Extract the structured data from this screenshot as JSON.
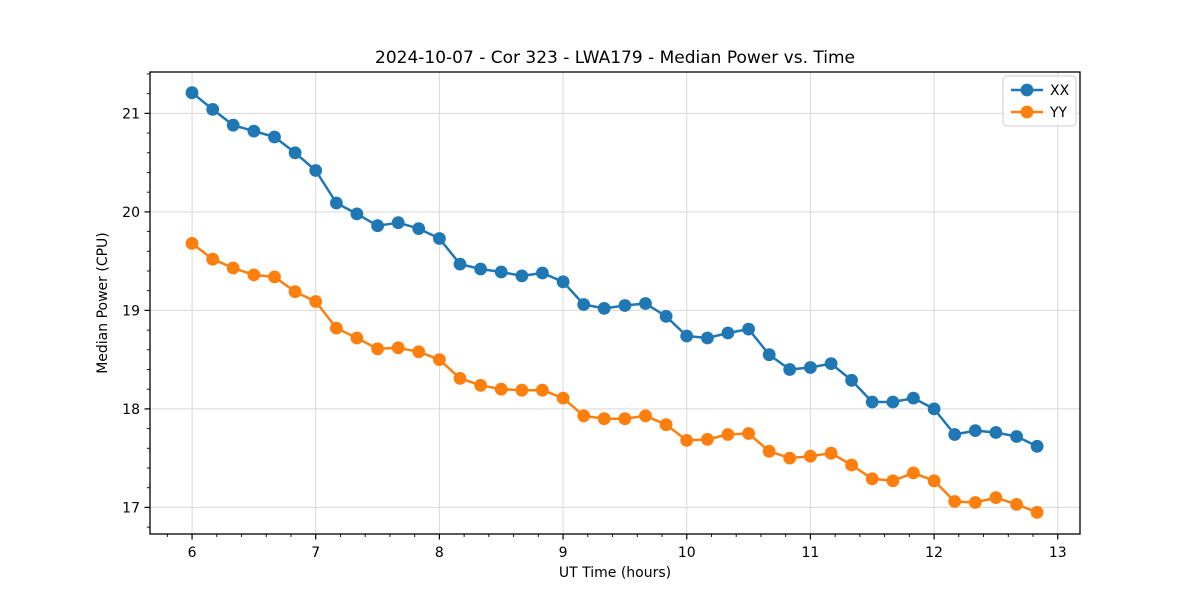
{
  "chart_data": {
    "type": "line",
    "title": "2024-10-07 - Cor 323 - LWA179 - Median Power vs. Time",
    "xlabel": "UT Time (hours)",
    "ylabel": "Median Power (CPU)",
    "xlim": [
      5.66,
      13.18
    ],
    "ylim": [
      16.73,
      21.42
    ],
    "xticks": [
      6,
      7,
      8,
      9,
      10,
      11,
      12,
      13
    ],
    "xticklabels": [
      "6",
      "7",
      "8",
      "9",
      "10",
      "11",
      "12",
      "13"
    ],
    "yticks": [
      17,
      18,
      19,
      20,
      21
    ],
    "yticklabels": [
      "17",
      "18",
      "19",
      "20",
      "21"
    ],
    "minor_tick_step": 0.2,
    "grid": "major-only",
    "grid_color": "#d9d9d9",
    "spine_color": "#000000",
    "legend_position": "upper-right",
    "marker": "circle",
    "x": [
      6.0,
      6.167,
      6.333,
      6.5,
      6.667,
      6.833,
      7.0,
      7.167,
      7.333,
      7.5,
      7.667,
      7.833,
      8.0,
      8.167,
      8.333,
      8.5,
      8.667,
      8.833,
      9.0,
      9.167,
      9.333,
      9.5,
      9.667,
      9.833,
      10.0,
      10.167,
      10.333,
      10.5,
      10.667,
      10.833,
      11.0,
      11.167,
      11.333,
      11.5,
      11.667,
      11.833,
      12.0,
      12.167,
      12.333,
      12.5,
      12.667,
      12.833
    ],
    "series": [
      {
        "name": "XX",
        "color": "#1f77b4",
        "values": [
          21.21,
          21.04,
          20.88,
          20.82,
          20.76,
          20.6,
          20.42,
          20.09,
          19.98,
          19.86,
          19.89,
          19.83,
          19.73,
          19.47,
          19.42,
          19.39,
          19.35,
          19.38,
          19.29,
          19.06,
          19.02,
          19.05,
          19.07,
          18.94,
          18.74,
          18.72,
          18.77,
          18.81,
          18.55,
          18.4,
          18.42,
          18.46,
          18.29,
          18.07,
          18.07,
          18.11,
          18.0,
          17.74,
          17.78,
          17.76,
          17.72,
          17.62
        ]
      },
      {
        "name": "YY",
        "color": "#ff7f0e",
        "values": [
          19.68,
          19.52,
          19.43,
          19.36,
          19.34,
          19.19,
          19.09,
          18.82,
          18.72,
          18.61,
          18.62,
          18.58,
          18.5,
          18.31,
          18.24,
          18.2,
          18.19,
          18.19,
          18.11,
          17.93,
          17.9,
          17.9,
          17.93,
          17.84,
          17.68,
          17.69,
          17.74,
          17.75,
          17.57,
          17.5,
          17.52,
          17.55,
          17.43,
          17.29,
          17.27,
          17.35,
          17.27,
          17.06,
          17.05,
          17.1,
          17.03,
          16.95
        ]
      }
    ]
  },
  "legend": {
    "items": [
      {
        "label": "XX",
        "color": "#1f77b4"
      },
      {
        "label": "YY",
        "color": "#ff7f0e"
      }
    ]
  }
}
